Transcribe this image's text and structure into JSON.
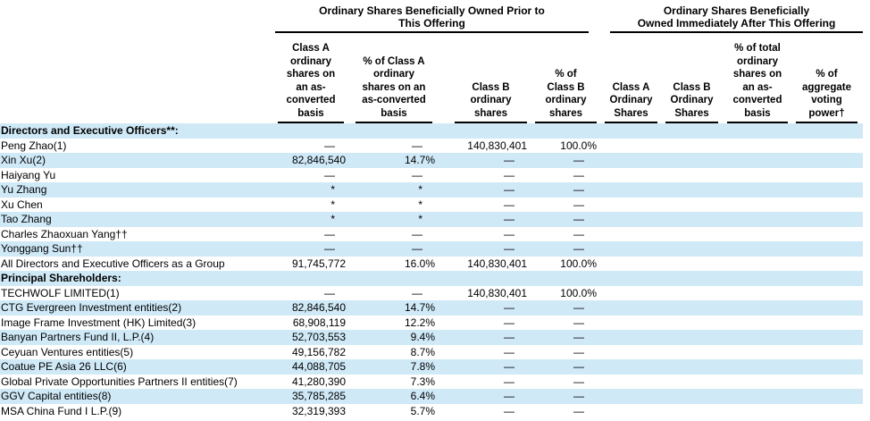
{
  "colors": {
    "stripe": "#cfe9f7",
    "text": "#000000",
    "rule": "#000000"
  },
  "header": {
    "groups": [
      {
        "title": "Ordinary Shares Beneficially Owned Prior to\nThis Offering"
      },
      {
        "title": "Ordinary Shares Beneficially\nOwned Immediately After This Offering"
      }
    ],
    "columns": [
      {
        "id": "class-a-prior",
        "label": "Class A\nordinary\nshares on\nan as-\nconverted\nbasis"
      },
      {
        "id": "pct-class-a-prior",
        "label": "% of Class A\nordinary\nshares on an\nas-converted\nbasis"
      },
      {
        "id": "class-b-prior",
        "label": "Class B\nordinary\nshares"
      },
      {
        "id": "pct-class-b-prior",
        "label": "% of\nClass B\nordinary\nshares"
      },
      {
        "id": "class-a-after",
        "label": "Class A\nOrdinary\nShares"
      },
      {
        "id": "class-b-after",
        "label": "Class B\nOrdinary\nShares"
      },
      {
        "id": "pct-total-after",
        "label": "% of total\nordinary\nshares on\nan as-\nconverted\nbasis"
      },
      {
        "id": "pct-voting-after",
        "label": "% of\naggregate\nvoting\npower†"
      }
    ]
  },
  "rows": [
    {
      "name": "Directors and Executive Officers**:",
      "section": true,
      "values": [
        "",
        "",
        "",
        "",
        "",
        "",
        "",
        ""
      ]
    },
    {
      "name": "Peng Zhao(1)",
      "section": false,
      "values": [
        "—",
        "—",
        "140,830,401",
        "100.0%",
        "",
        "",
        "",
        ""
      ]
    },
    {
      "name": "Xin Xu(2)",
      "section": false,
      "values": [
        "82,846,540",
        "14.7%",
        "—",
        "—",
        "",
        "",
        "",
        ""
      ]
    },
    {
      "name": "Haiyang Yu",
      "section": false,
      "values": [
        "—",
        "—",
        "—",
        "—",
        "",
        "",
        "",
        ""
      ]
    },
    {
      "name": "Yu Zhang",
      "section": false,
      "values": [
        "*",
        "*",
        "—",
        "—",
        "",
        "",
        "",
        ""
      ]
    },
    {
      "name": "Xu Chen",
      "section": false,
      "values": [
        "*",
        "*",
        "—",
        "—",
        "",
        "",
        "",
        ""
      ]
    },
    {
      "name": "Tao Zhang",
      "section": false,
      "values": [
        "*",
        "*",
        "—",
        "—",
        "",
        "",
        "",
        ""
      ]
    },
    {
      "name": "Charles Zhaoxuan Yang††",
      "section": false,
      "values": [
        "—",
        "—",
        "—",
        "—",
        "",
        "",
        "",
        ""
      ]
    },
    {
      "name": "Yonggang Sun††",
      "section": false,
      "values": [
        "—",
        "—",
        "—",
        "—",
        "",
        "",
        "",
        ""
      ]
    },
    {
      "name": "All Directors and Executive Officers as a Group",
      "section": false,
      "values": [
        "91,745,772",
        "16.0%",
        "140,830,401",
        "100.0%",
        "",
        "",
        "",
        ""
      ]
    },
    {
      "name": "Principal Shareholders:",
      "section": true,
      "values": [
        "",
        "",
        "",
        "",
        "",
        "",
        "",
        ""
      ]
    },
    {
      "name": "TECHWOLF LIMITED(1)",
      "section": false,
      "values": [
        "—",
        "—",
        "140,830,401",
        "100.0%",
        "",
        "",
        "",
        ""
      ]
    },
    {
      "name": "CTG Evergreen Investment entities(2)",
      "section": false,
      "values": [
        "82,846,540",
        "14.7%",
        "—",
        "—",
        "",
        "",
        "",
        ""
      ]
    },
    {
      "name": "Image Frame Investment (HK) Limited(3)",
      "section": false,
      "values": [
        "68,908,119",
        "12.2%",
        "—",
        "—",
        "",
        "",
        "",
        ""
      ]
    },
    {
      "name": "Banyan Partners Fund II, L.P.(4)",
      "section": false,
      "values": [
        "52,703,553",
        "9.4%",
        "—",
        "—",
        "",
        "",
        "",
        ""
      ]
    },
    {
      "name": "Ceyuan Ventures entities(5)",
      "section": false,
      "values": [
        "49,156,782",
        "8.7%",
        "—",
        "—",
        "",
        "",
        "",
        ""
      ]
    },
    {
      "name": "Coatue PE Asia 26 LLC(6)",
      "section": false,
      "values": [
        "44,088,705",
        "7.8%",
        "—",
        "—",
        "",
        "",
        "",
        ""
      ]
    },
    {
      "name": "Global Private Opportunities Partners II entities(7)",
      "section": false,
      "values": [
        "41,280,390",
        "7.3%",
        "—",
        "—",
        "",
        "",
        "",
        ""
      ]
    },
    {
      "name": "GGV Capital entities(8)",
      "section": false,
      "values": [
        "35,785,285",
        "6.4%",
        "—",
        "—",
        "",
        "",
        "",
        ""
      ]
    },
    {
      "name": "MSA China Fund I L.P.(9)",
      "section": false,
      "values": [
        "32,319,393",
        "5.7%",
        "—",
        "—",
        "",
        "",
        "",
        ""
      ]
    }
  ]
}
